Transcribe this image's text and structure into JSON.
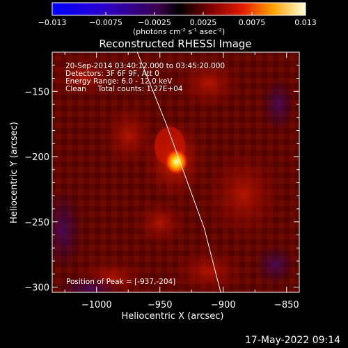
{
  "colorbar": {
    "ticks": [
      "-0.013",
      "-0.0075",
      "-0.0025",
      "0.0025",
      "0.0075",
      "0.013"
    ],
    "tick_values": [
      -0.013,
      -0.0075,
      -0.0025,
      0.0025,
      0.0075,
      0.013
    ],
    "range": [
      -0.013,
      0.013
    ],
    "units_html": "(photons cm<tspan dy=\"-4\" font-size=\"7\">-2</tspan><tspan dy=\"4\"> s</tspan><tspan dy=\"-4\" font-size=\"7\">-1</tspan><tspan dy=\"4\"> asec</tspan><tspan dy=\"-4\" font-size=\"7\">-2</tspan><tspan dy=\"4\">)</tspan>"
  },
  "chart_data": {
    "type": "heatmap",
    "title": "Reconstructed RHESSI Image",
    "xlabel": "Heliocentric X (arcsec)",
    "ylabel": "Heliocentric Y (arcsec)",
    "xlim": [
      -1035,
      -840
    ],
    "ylim": [
      -304,
      -120
    ],
    "xticks": [
      -1000,
      -950,
      -900,
      -850
    ],
    "yticks": [
      -150,
      -200,
      -250,
      -300
    ],
    "xtick_labels": [
      "−1000",
      "−950",
      "−900",
      "−850"
    ],
    "ytick_labels": [
      "−150",
      "−200",
      "−250",
      "−300"
    ],
    "annotations": [
      "20-Sep-2014 03:40:12.000 to 03:45:20.000",
      "Detectors: 3F 6F 9F, Att 0",
      "Energy Range: 6.0 - 12.0 keV",
      "Clean     Total counts: 1.27E+04"
    ],
    "peak_label": "Position of Peak = [-937,-204]",
    "peak": [
      -937,
      -204
    ],
    "limb_arc": [
      [
        -972,
        -110
      ],
      [
        -945,
        -175
      ],
      [
        -930,
        -215
      ],
      [
        -915,
        -255
      ],
      [
        -902,
        -304
      ]
    ]
  },
  "timestamp": "17-May-2022 09:14"
}
